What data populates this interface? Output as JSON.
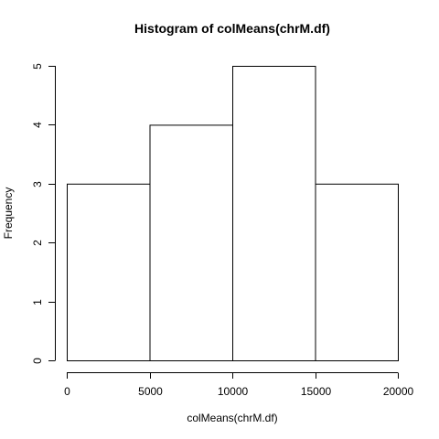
{
  "chart_data": {
    "type": "bar",
    "title": "Histogram of colMeans(chrM.df)",
    "xlabel": "colMeans(chrM.df)",
    "ylabel": "Frequency",
    "bins": [
      {
        "start": 0,
        "end": 5000,
        "count": 3
      },
      {
        "start": 5000,
        "end": 10000,
        "count": 4
      },
      {
        "start": 10000,
        "end": 15000,
        "count": 5
      },
      {
        "start": 15000,
        "end": 20000,
        "count": 3
      }
    ],
    "xlim": [
      0,
      20000
    ],
    "ylim": [
      0,
      5
    ],
    "x_ticks": [
      0,
      5000,
      10000,
      15000,
      20000
    ],
    "y_ticks": [
      0,
      1,
      2,
      3,
      4,
      5
    ],
    "bar_fill": "#ffffff",
    "bar_stroke": "#000000",
    "grid": false
  }
}
